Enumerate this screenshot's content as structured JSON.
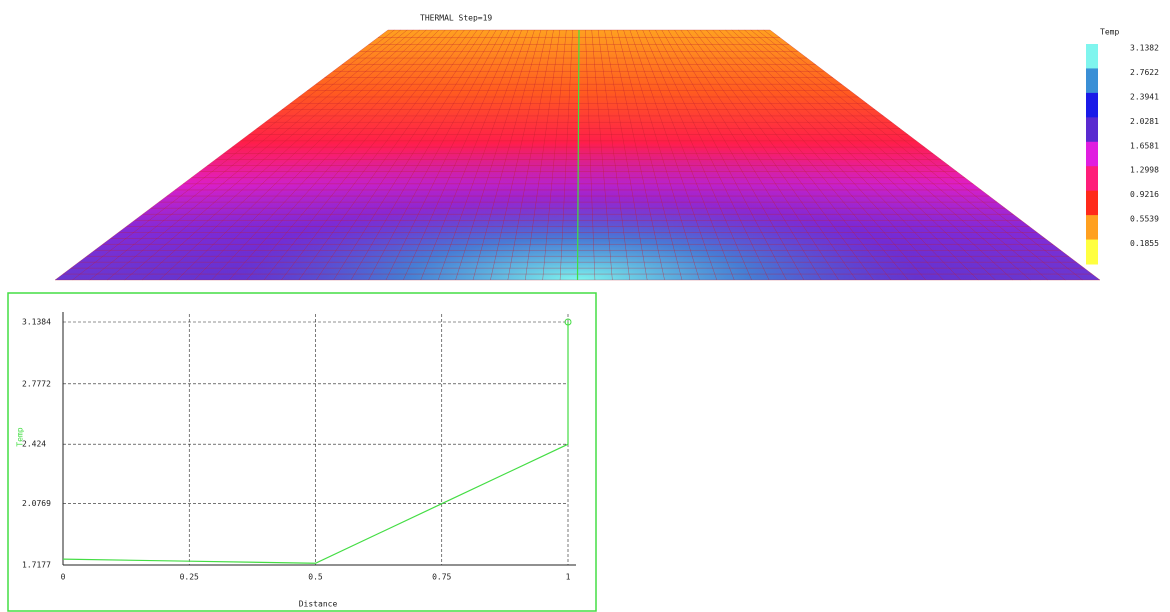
{
  "viewport": {
    "title": "THERMAL Step=19"
  },
  "legend": {
    "title": "Temp",
    "labels": [
      "3.1382",
      "2.7622",
      "2.3941",
      "2.0281",
      "1.6581",
      "1.2998",
      "0.9216",
      "0.5539",
      "0.1855"
    ],
    "colors": [
      "#7ff5ee",
      "#3a8fd6",
      "#1a1ae8",
      "#5a2ad0",
      "#e01ee0",
      "#ff1e7a",
      "#ff2a1a",
      "#ffa020",
      "#ffff40"
    ]
  },
  "chart_data": {
    "type": "line",
    "x": [
      0,
      0.25,
      0.5,
      0.75,
      1,
      1
    ],
    "values": [
      1.752,
      1.74,
      1.728,
      2.076,
      2.424,
      3.1384
    ],
    "color": "#44dd44",
    "xlabel": "Distance",
    "ylabel": "Temp",
    "xlim": [
      0,
      1
    ],
    "ylim": [
      1.7177,
      3.1384
    ],
    "xticks": [
      0,
      0.25,
      0.5,
      0.75,
      1
    ],
    "yticks": [
      1.7177,
      2.0769,
      2.424,
      2.7772,
      3.1384
    ],
    "grid": true
  }
}
